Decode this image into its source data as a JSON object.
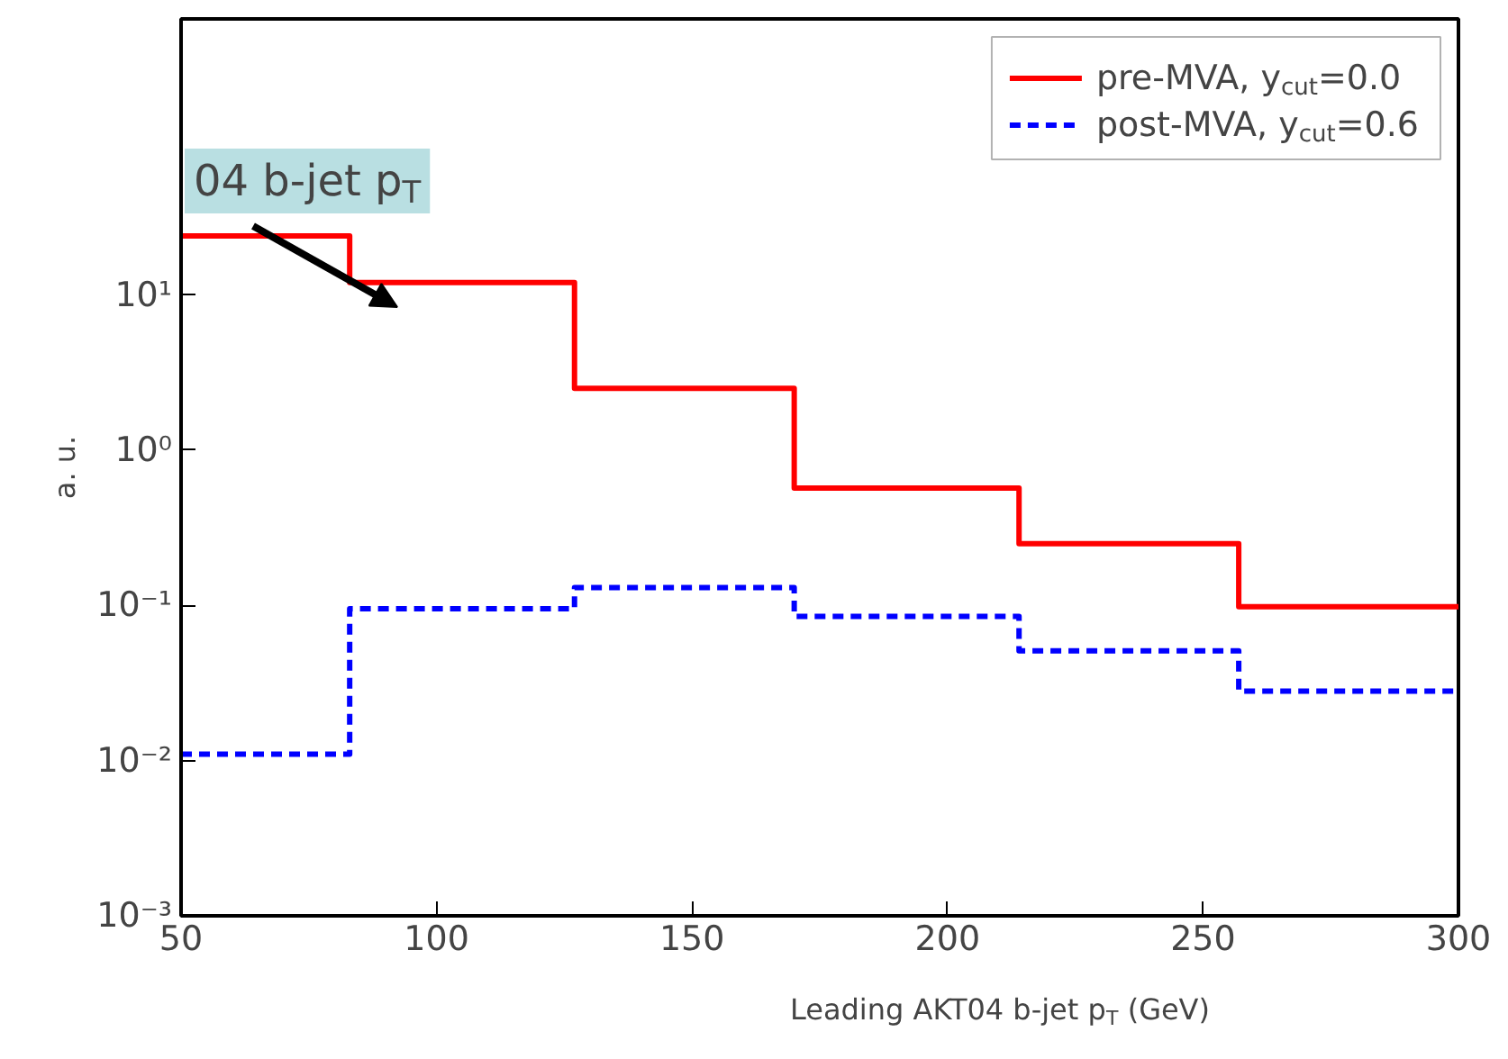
{
  "chart_data": {
    "type": "histogram",
    "xlabel": "Leading AKT04 b-jet p$_{T}$ (GeV)",
    "ylabel": "a. u.",
    "bins": [
      50,
      83,
      127,
      170,
      214,
      257,
      300
    ],
    "series": [
      {
        "name": "pre-MVA, y$_{cut}$=0.0",
        "color": "#ff0000",
        "line_style": "solid",
        "values": [
          24,
          12,
          2.5,
          0.57,
          0.25,
          0.098
        ]
      },
      {
        "name": "post-MVA, y$_{cut}$=0.6",
        "color": "#0000ff",
        "line_style": "dashed",
        "values": [
          0.011,
          0.095,
          0.13,
          0.085,
          0.051,
          0.028
        ]
      }
    ],
    "xlim": [
      50,
      300
    ],
    "xticks": [
      50,
      100,
      150,
      200,
      250,
      300
    ],
    "ylim": [
      0.001,
      600
    ],
    "yticks": [
      {
        "value": 0.001,
        "label": "10⁻³"
      },
      {
        "value": 0.01,
        "label": "10⁻²"
      },
      {
        "value": 0.1,
        "label": "10⁻¹"
      },
      {
        "value": 1,
        "label": "10⁰"
      },
      {
        "value": 10,
        "label": "10¹"
      }
    ],
    "log": "y",
    "grid": false,
    "legend": "top right",
    "annotations": [
      "04 b-jet p$_{T}$"
    ]
  }
}
